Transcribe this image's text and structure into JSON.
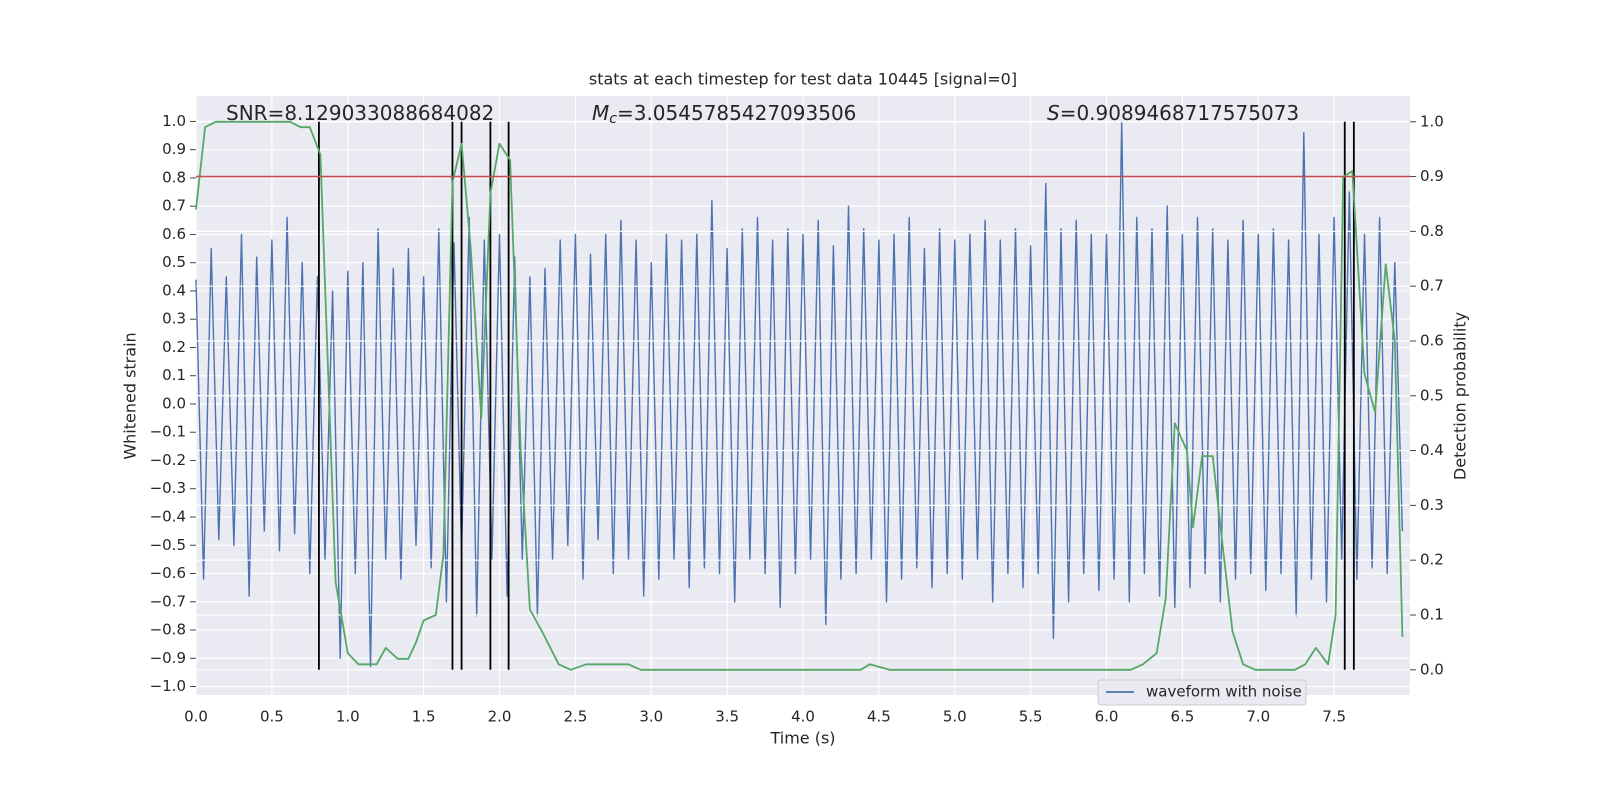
{
  "chart_data": {
    "type": "line",
    "title": "stats at each timestep for test data 10445 [signal=0]",
    "xlabel": "Time (s)",
    "ylabel": "Whitened strain",
    "y2label": "Detection probability",
    "annotations": [
      {
        "symbol": "SNR",
        "italic": false,
        "text": "=8.129033088684082"
      },
      {
        "symbol": "M",
        "sub": "c",
        "italic": true,
        "text": "=3.0545785427093506"
      },
      {
        "symbol": "S",
        "italic": true,
        "text": "=0.9089468717575073"
      }
    ],
    "xlim": [
      0,
      8
    ],
    "ylim": [
      -1.03,
      1.09
    ],
    "y2lim": [
      -0.046,
      1.047
    ],
    "grid": true,
    "legend": "lower right",
    "xticks": [
      {
        "value": 0,
        "label": "0.0"
      },
      {
        "value": 0.5,
        "label": "0.5"
      },
      {
        "value": 1,
        "label": "1.0"
      },
      {
        "value": 1.5,
        "label": "1.5"
      },
      {
        "value": 2,
        "label": "2.0"
      },
      {
        "value": 2.5,
        "label": "2.5"
      },
      {
        "value": 3,
        "label": "3.0"
      },
      {
        "value": 3.5,
        "label": "3.5"
      },
      {
        "value": 4,
        "label": "4.0"
      },
      {
        "value": 4.5,
        "label": "4.5"
      },
      {
        "value": 5,
        "label": "5.0"
      },
      {
        "value": 5.5,
        "label": "5.5"
      },
      {
        "value": 6,
        "label": "6.0"
      },
      {
        "value": 6.5,
        "label": "6.5"
      },
      {
        "value": 7,
        "label": "7.0"
      },
      {
        "value": 7.5,
        "label": "7.5"
      }
    ],
    "yticks": [
      {
        "value": -1,
        "label": "−1.0"
      },
      {
        "value": -0.9,
        "label": "−0.9"
      },
      {
        "value": -0.8,
        "label": "−0.8"
      },
      {
        "value": -0.7,
        "label": "−0.7"
      },
      {
        "value": -0.6,
        "label": "−0.6"
      },
      {
        "value": -0.5,
        "label": "−0.5"
      },
      {
        "value": -0.4,
        "label": "−0.4"
      },
      {
        "value": -0.3,
        "label": "−0.3"
      },
      {
        "value": -0.2,
        "label": "−0.2"
      },
      {
        "value": -0.1,
        "label": "−0.1"
      },
      {
        "value": 0,
        "label": "0.0"
      },
      {
        "value": 0.1,
        "label": "0.1"
      },
      {
        "value": 0.2,
        "label": "0.2"
      },
      {
        "value": 0.3,
        "label": "0.3"
      },
      {
        "value": 0.4,
        "label": "0.4"
      },
      {
        "value": 0.5,
        "label": "0.5"
      },
      {
        "value": 0.6,
        "label": "0.6"
      },
      {
        "value": 0.7,
        "label": "0.7"
      },
      {
        "value": 0.8,
        "label": "0.8"
      },
      {
        "value": 0.9,
        "label": "0.9"
      },
      {
        "value": 1,
        "label": "1.0"
      }
    ],
    "y2ticks": [
      {
        "value": 0,
        "label": "0.0"
      },
      {
        "value": 0.1,
        "label": "0.1"
      },
      {
        "value": 0.2,
        "label": "0.2"
      },
      {
        "value": 0.3,
        "label": "0.3"
      },
      {
        "value": 0.4,
        "label": "0.4"
      },
      {
        "value": 0.5,
        "label": "0.5"
      },
      {
        "value": 0.6,
        "label": "0.6"
      },
      {
        "value": 0.7,
        "label": "0.7"
      },
      {
        "value": 0.8,
        "label": "0.8"
      },
      {
        "value": 0.9,
        "label": "0.9"
      },
      {
        "value": 1,
        "label": "1.0"
      }
    ],
    "series": [
      {
        "name": "waveform with noise",
        "color": "#4c72b0",
        "x": [
          0,
          0.05,
          0.1,
          0.15,
          0.2,
          0.25,
          0.3,
          0.35,
          0.4,
          0.45,
          0.5,
          0.55,
          0.6,
          0.65,
          0.7,
          0.75,
          0.8,
          0.85,
          0.9,
          0.95,
          1,
          1.05,
          1.1,
          1.15,
          1.2,
          1.25,
          1.3,
          1.35,
          1.4,
          1.45,
          1.5,
          1.55,
          1.6,
          1.65,
          1.7,
          1.75,
          1.8,
          1.85,
          1.9,
          1.95,
          2,
          2.05,
          2.1,
          2.15,
          2.2,
          2.25,
          2.3,
          2.35,
          2.4,
          2.45,
          2.5,
          2.55,
          2.6,
          2.65,
          2.7,
          2.75,
          2.8,
          2.85,
          2.9,
          2.95,
          3,
          3.05,
          3.1,
          3.15,
          3.2,
          3.25,
          3.3,
          3.35,
          3.4,
          3.45,
          3.5,
          3.55,
          3.6,
          3.65,
          3.7,
          3.75,
          3.8,
          3.85,
          3.9,
          3.95,
          4,
          4.05,
          4.1,
          4.15,
          4.2,
          4.25,
          4.3,
          4.35,
          4.4,
          4.45,
          4.5,
          4.55,
          4.6,
          4.65,
          4.7,
          4.75,
          4.8,
          4.85,
          4.9,
          4.95,
          5,
          5.05,
          5.1,
          5.15,
          5.2,
          5.25,
          5.3,
          5.35,
          5.4,
          5.45,
          5.5,
          5.55,
          5.6,
          5.65,
          5.7,
          5.75,
          5.8,
          5.85,
          5.9,
          5.95,
          6,
          6.05,
          6.1,
          6.15,
          6.2,
          6.25,
          6.3,
          6.35,
          6.4,
          6.45,
          6.5,
          6.55,
          6.6,
          6.65,
          6.7,
          6.75,
          6.8,
          6.85,
          6.9,
          6.95,
          7,
          7.05,
          7.1,
          7.15,
          7.2,
          7.25,
          7.3,
          7.35,
          7.4,
          7.45,
          7.5,
          7.55,
          7.6,
          7.65,
          7.7,
          7.75,
          7.8,
          7.85,
          7.9,
          7.95
        ],
        "values": [
          0.44,
          -0.62,
          0.55,
          -0.48,
          0.45,
          -0.5,
          0.6,
          -0.68,
          0.52,
          -0.45,
          0.58,
          -0.52,
          0.66,
          -0.46,
          0.5,
          -0.6,
          0.45,
          -0.55,
          0.4,
          -0.9,
          0.47,
          -0.6,
          0.5,
          -0.93,
          0.62,
          -0.55,
          0.48,
          -0.62,
          0.55,
          -0.5,
          0.45,
          -0.58,
          0.62,
          -0.7,
          0.57,
          -0.52,
          0.66,
          -0.75,
          0.58,
          -0.55,
          0.6,
          -0.68,
          0.52,
          -0.55,
          0.45,
          -0.75,
          0.48,
          -0.55,
          0.58,
          -0.5,
          0.6,
          -0.62,
          0.53,
          -0.48,
          0.6,
          -0.6,
          0.65,
          -0.55,
          0.58,
          -0.68,
          0.5,
          -0.62,
          0.6,
          -0.55,
          0.58,
          -0.65,
          0.6,
          -0.58,
          0.72,
          -0.6,
          0.55,
          -0.7,
          0.62,
          -0.55,
          0.66,
          -0.6,
          0.58,
          -0.72,
          0.62,
          -0.6,
          0.6,
          -0.55,
          0.65,
          -0.78,
          0.56,
          -0.62,
          0.7,
          -0.6,
          0.62,
          -0.55,
          0.58,
          -0.7,
          0.6,
          -0.62,
          0.66,
          -0.58,
          0.55,
          -0.65,
          0.62,
          -0.6,
          0.58,
          -0.62,
          0.6,
          -0.55,
          0.65,
          -0.7,
          0.58,
          -0.6,
          0.62,
          -0.65,
          0.56,
          -0.6,
          0.78,
          -0.83,
          0.62,
          -0.7,
          0.65,
          -0.6,
          0.6,
          -0.66,
          0.6,
          -0.62,
          1.0,
          -0.7,
          0.66,
          -0.6,
          0.62,
          -0.68,
          0.7,
          -0.72,
          0.6,
          -0.65,
          0.66,
          -0.6,
          0.62,
          -0.7,
          0.58,
          -0.62,
          0.65,
          -0.6,
          0.6,
          -0.66,
          0.62,
          -0.6,
          0.58,
          -0.75,
          0.96,
          -0.62,
          0.6,
          -0.7,
          0.66,
          -0.55,
          0.75,
          -0.62,
          0.6,
          -0.58,
          0.66,
          -0.6,
          0.5,
          -0.45
        ]
      },
      {
        "color": "#55a868",
        "axis": "y2",
        "x": [
          0,
          0.06,
          0.13,
          0.62,
          0.69,
          0.75,
          0.82,
          0.92,
          1,
          1.07,
          1.19,
          1.25,
          1.33,
          1.4,
          1.45,
          1.5,
          1.58,
          1.63,
          1.69,
          1.75,
          1.81,
          1.88,
          1.94,
          2,
          2.07,
          2.14,
          2.2,
          2.28,
          2.39,
          2.47,
          2.57,
          2.7,
          2.78,
          2.85,
          2.93,
          4.38,
          4.44,
          4.57,
          6.16,
          6.24,
          6.33,
          6.39,
          6.45,
          6.53,
          6.57,
          6.63,
          6.7,
          6.76,
          6.83,
          6.9,
          6.98,
          7.24,
          7.31,
          7.38,
          7.46,
          7.51,
          7.56,
          7.62,
          7.7,
          7.77,
          7.84,
          7.9,
          7.95
        ],
        "values": [
          0.84,
          0.99,
          1.0,
          1.0,
          0.99,
          0.99,
          0.94,
          0.16,
          0.03,
          0.01,
          0.01,
          0.04,
          0.02,
          0.02,
          0.05,
          0.09,
          0.1,
          0.21,
          0.89,
          0.96,
          0.77,
          0.46,
          0.87,
          0.96,
          0.93,
          0.4,
          0.11,
          0.07,
          0.01,
          0.0,
          0.01,
          0.01,
          0.01,
          0.01,
          0.0,
          0.0,
          0.01,
          0.0,
          0.0,
          0.01,
          0.03,
          0.13,
          0.45,
          0.4,
          0.26,
          0.39,
          0.39,
          0.24,
          0.07,
          0.01,
          0.0,
          0.0,
          0.01,
          0.04,
          0.01,
          0.1,
          0.9,
          0.91,
          0.54,
          0.47,
          0.74,
          0.6,
          0.06
        ]
      }
    ],
    "vlines": {
      "x": [
        0.81,
        1.69,
        1.75,
        1.94,
        2.06,
        7.57,
        7.63
      ],
      "ymin": 0,
      "ymax": 1,
      "axis": "y2",
      "color": "#000000"
    },
    "hline": {
      "y": 0.9,
      "axis": "y2",
      "color": "#c44e52"
    }
  }
}
